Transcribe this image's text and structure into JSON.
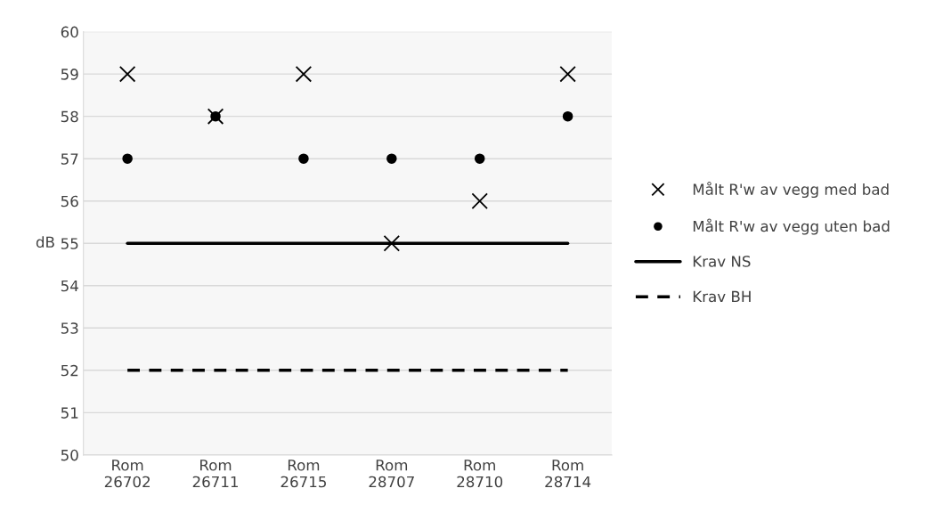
{
  "chart_data": {
    "type": "scatter",
    "ylabel": "dB",
    "categories": [
      "Rom\n26702",
      "Rom\n26711",
      "Rom\n26715",
      "Rom\n28707",
      "Rom\n28710",
      "Rom\n28714"
    ],
    "series": [
      {
        "name": "Målt R'w av vegg med bad",
        "marker": "cross",
        "color": "#000000",
        "values": [
          59,
          58,
          59,
          55,
          56,
          59
        ]
      },
      {
        "name": "Målt R'w av vegg uten bad",
        "marker": "circle",
        "color": "#000000",
        "values": [
          57,
          58,
          57,
          57,
          57,
          58
        ]
      },
      {
        "name": "Krav NS",
        "type": "line",
        "line_style": "solid",
        "color": "#000000",
        "values": [
          55,
          55,
          55,
          55,
          55,
          55
        ]
      },
      {
        "name": "Krav BH",
        "type": "line",
        "line_style": "dashed",
        "color": "#000000",
        "values": [
          52,
          52,
          52,
          52,
          52,
          52
        ]
      }
    ],
    "ylim": [
      50,
      60
    ],
    "yticks": [
      50,
      51,
      52,
      53,
      54,
      55,
      56,
      57,
      58,
      59,
      60
    ],
    "grid": "y",
    "legend": "right"
  }
}
